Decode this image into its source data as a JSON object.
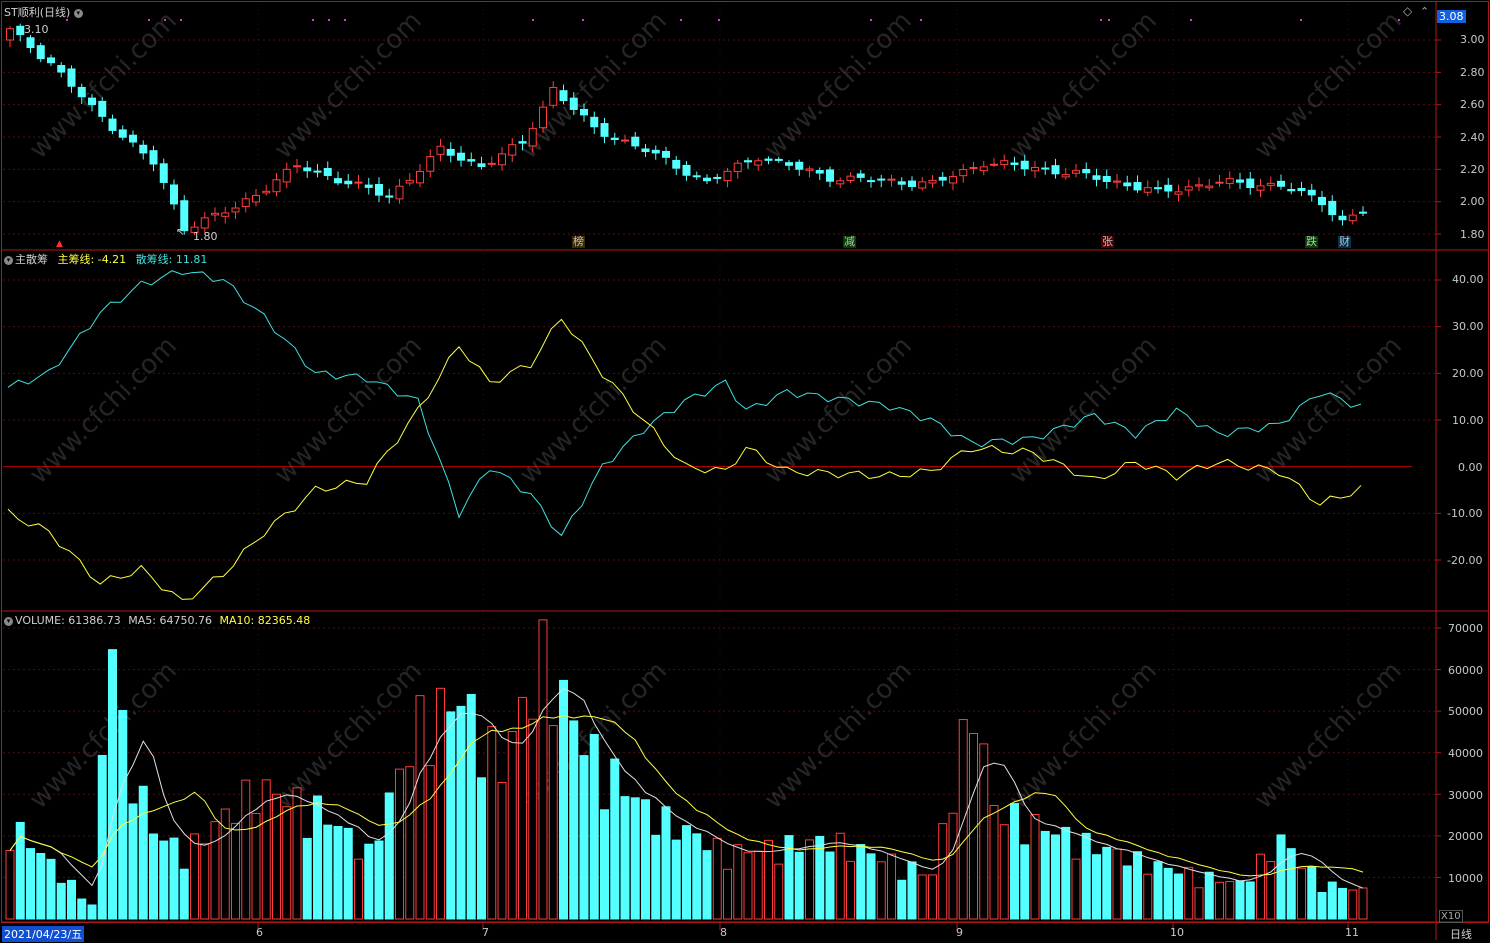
{
  "stock": {
    "name": "ST顺利",
    "period": "(日线)",
    "current_price": "3.08"
  },
  "price_panel": {
    "high_label": "3.10",
    "low_label": "1.80",
    "y_ticks": [
      "3.00",
      "2.80",
      "2.60",
      "2.40",
      "2.20",
      "2.00",
      "1.80"
    ],
    "event_flags": [
      {
        "text": "榜",
        "color": "#f0c000"
      },
      {
        "text": "减",
        "color": "#40ff40"
      },
      {
        "text": "张",
        "color": "#ff6060"
      },
      {
        "text": "跌",
        "color": "#40ff40"
      },
      {
        "text": "财",
        "color": "#40c0ff"
      }
    ]
  },
  "indicator_panel": {
    "name": "主散筹",
    "main_label": "主筹线:",
    "main_value": "-4.21",
    "retail_label": "散筹线:",
    "retail_value": "11.81",
    "y_ticks": [
      "40.00",
      "30.00",
      "20.00",
      "10.00",
      "0.00",
      "-10.00",
      "-20.00"
    ],
    "colors": {
      "main": "#ffff40",
      "retail": "#40e0e0",
      "zero": "#c00000"
    }
  },
  "volume_panel": {
    "volume_label": "VOLUME:",
    "volume_value": "61386.73",
    "ma5_label": "MA5:",
    "ma5_value": "64750.76",
    "ma10_label": "MA10:",
    "ma10_value": "82365.48",
    "y_ticks": [
      "70000",
      "60000",
      "50000",
      "40000",
      "30000",
      "20000",
      "10000"
    ],
    "unit": "X10"
  },
  "x_axis": {
    "start_date": "2021/04/23/五",
    "months": [
      "6",
      "7",
      "8",
      "9",
      "10",
      "11"
    ],
    "period_button": "日线"
  },
  "watermark": "www.cfchi.com",
  "colors": {
    "up": "#ff3c3c",
    "down": "#54ffff",
    "frame": "#b01818",
    "grid": "#501010"
  }
}
